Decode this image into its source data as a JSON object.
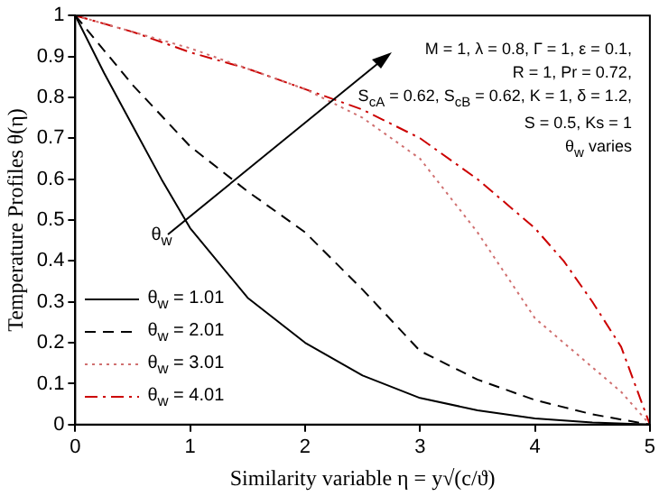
{
  "chart_data": {
    "type": "line",
    "xlabel": "Similarity variable η = y√(c/ϑ)",
    "ylabel": "Temperature Profiles θ(η)",
    "xlim": [
      0,
      5
    ],
    "xticks": [
      0,
      1,
      2,
      3,
      4,
      5
    ],
    "ylim": [
      0,
      1
    ],
    "yticks": [
      0,
      0.1,
      0.2,
      0.3,
      0.4,
      0.5,
      0.6,
      0.7,
      0.8,
      0.9,
      1
    ],
    "grid": false,
    "legend": "bottom left",
    "marker": "none",
    "series": [
      {
        "name": "θ$_{w}$ = 1.01",
        "color": "#000000",
        "line_style": "solid",
        "x": [
          0,
          0.25,
          0.5,
          0.75,
          1,
          1.5,
          2,
          2.5,
          3,
          3.5,
          4,
          4.5,
          5
        ],
        "values": [
          1,
          0.86,
          0.73,
          0.6,
          0.48,
          0.31,
          0.2,
          0.12,
          0.065,
          0.035,
          0.015,
          0.005,
          0
        ]
      },
      {
        "name": "θ$_{w}$ = 2.01",
        "color": "#000000",
        "line_style": "dashed",
        "x": [
          0,
          0.5,
          1,
          1.5,
          2,
          2.5,
          3,
          3.5,
          4,
          4.5,
          5
        ],
        "values": [
          1,
          0.83,
          0.68,
          0.57,
          0.47,
          0.33,
          0.18,
          0.11,
          0.06,
          0.025,
          0
        ]
      },
      {
        "name": "θ$_{w}$ = 3.01",
        "color": "#d07070",
        "line_style": "dotted",
        "x": [
          0,
          0.5,
          1,
          1.5,
          2,
          2.5,
          3,
          3.5,
          4,
          4.5,
          4.75,
          5
        ],
        "values": [
          1,
          0.96,
          0.92,
          0.87,
          0.82,
          0.75,
          0.65,
          0.47,
          0.26,
          0.14,
          0.08,
          0
        ]
      },
      {
        "name": "θ$_{w}$ = 4.01",
        "color": "#cc0000",
        "line_style": "dashdot",
        "x": [
          0,
          0.5,
          1,
          1.5,
          2,
          2.5,
          3,
          3.5,
          4,
          4.25,
          4.5,
          4.75,
          5
        ],
        "values": [
          1,
          0.96,
          0.91,
          0.87,
          0.82,
          0.77,
          0.7,
          0.6,
          0.48,
          0.4,
          0.3,
          0.19,
          0
        ]
      }
    ],
    "annotations": [
      "M = 1, λ = 0.8, Γ = 1, ε = 0.1,",
      "R = 1, Pr = 0.72,",
      "S$_{cA}$ = 0.62, S$_{cB}$ = 0.62,  K = 1, δ = 1.2,",
      "S = 0.5, Ks = 1",
      "θ$_{w}$ varies",
      "θ$_{w}$"
    ]
  }
}
